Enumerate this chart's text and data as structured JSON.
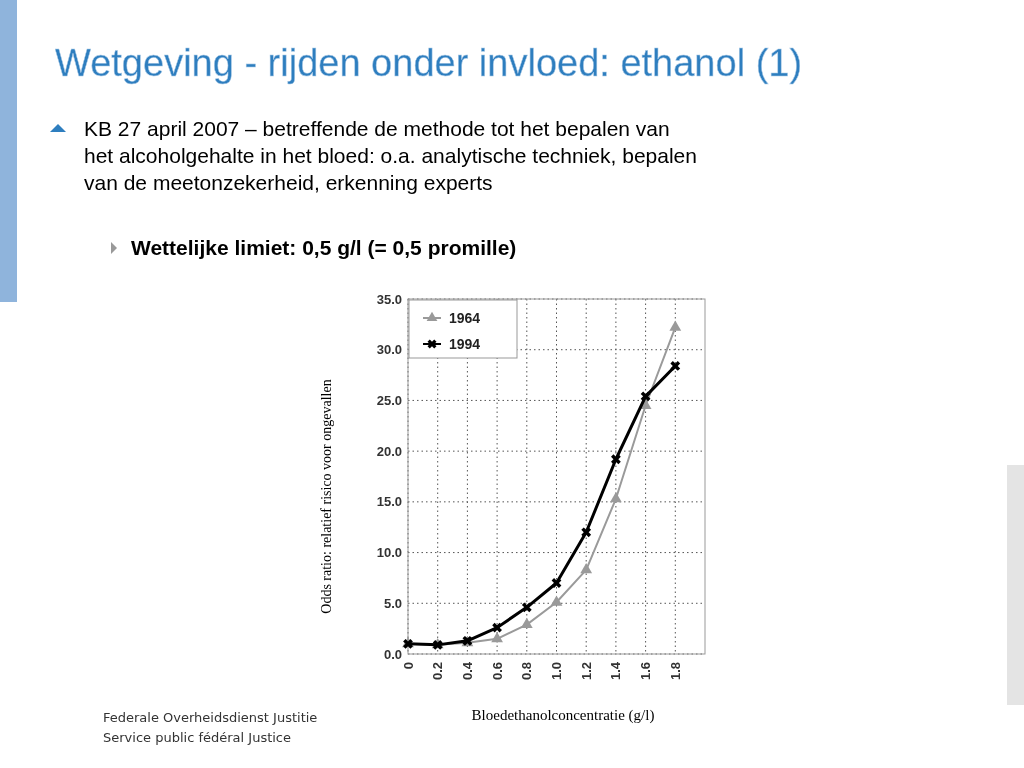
{
  "chart_data": {
    "type": "line",
    "title": "Wetgeving - rijden onder invloed: ethanol (1)",
    "annotations": [
      "KB 27 april 2007 – betreffende de methode tot het bepalen van\nhet alcoholgehalte in het bloed: o.a. analytische techniek, bepalen\nvan de meetonzekerheid, erkenning experts",
      "Wettelijke limiet: 0,5 g/l (= 0,5 promille)",
      "Federale Overheidsdienst Justitie",
      "Service public fédéral Justice"
    ],
    "xlabel": "Bloedethanolconcentratie (g/l)",
    "ylabel": "Odds ratio: relatief risico voor ongevallen",
    "x": [
      0,
      0.2,
      0.4,
      0.6,
      0.8,
      1.0,
      1.2,
      1.4,
      1.6,
      1.8
    ],
    "series": [
      {
        "name": "1964",
        "color": "#9a9a9a",
        "marker": "triangle",
        "values": [
          1.0,
          0.9,
          1.1,
          1.5,
          2.9,
          5.1,
          8.3,
          15.3,
          24.5,
          32.2
        ]
      },
      {
        "name": "1994",
        "color": "#000000",
        "marker": "cross",
        "values": [
          1.0,
          0.9,
          1.3,
          2.6,
          4.6,
          7.0,
          12.0,
          19.2,
          25.4,
          28.4
        ]
      }
    ],
    "xlim": [
      0,
      2.0
    ],
    "xticks": [
      0,
      0.2,
      0.4,
      0.6,
      0.8,
      {
        "value": 1.0,
        "label": "1.0"
      },
      1.2,
      1.4,
      1.6,
      1.8
    ],
    "ylim": [
      0,
      35
    ],
    "yticks": [
      {
        "value": 0,
        "label": "0.0"
      },
      {
        "value": 5,
        "label": "5.0"
      },
      {
        "value": 10,
        "label": "10.0"
      },
      {
        "value": 15,
        "label": "15.0"
      },
      {
        "value": 20,
        "label": "20.0"
      },
      {
        "value": 25,
        "label": "25.0"
      },
      {
        "value": 30,
        "label": "30.0"
      },
      {
        "value": 35,
        "label": "35.0"
      }
    ],
    "grid": true,
    "legend": "top left",
    "line_style": "solid"
  }
}
